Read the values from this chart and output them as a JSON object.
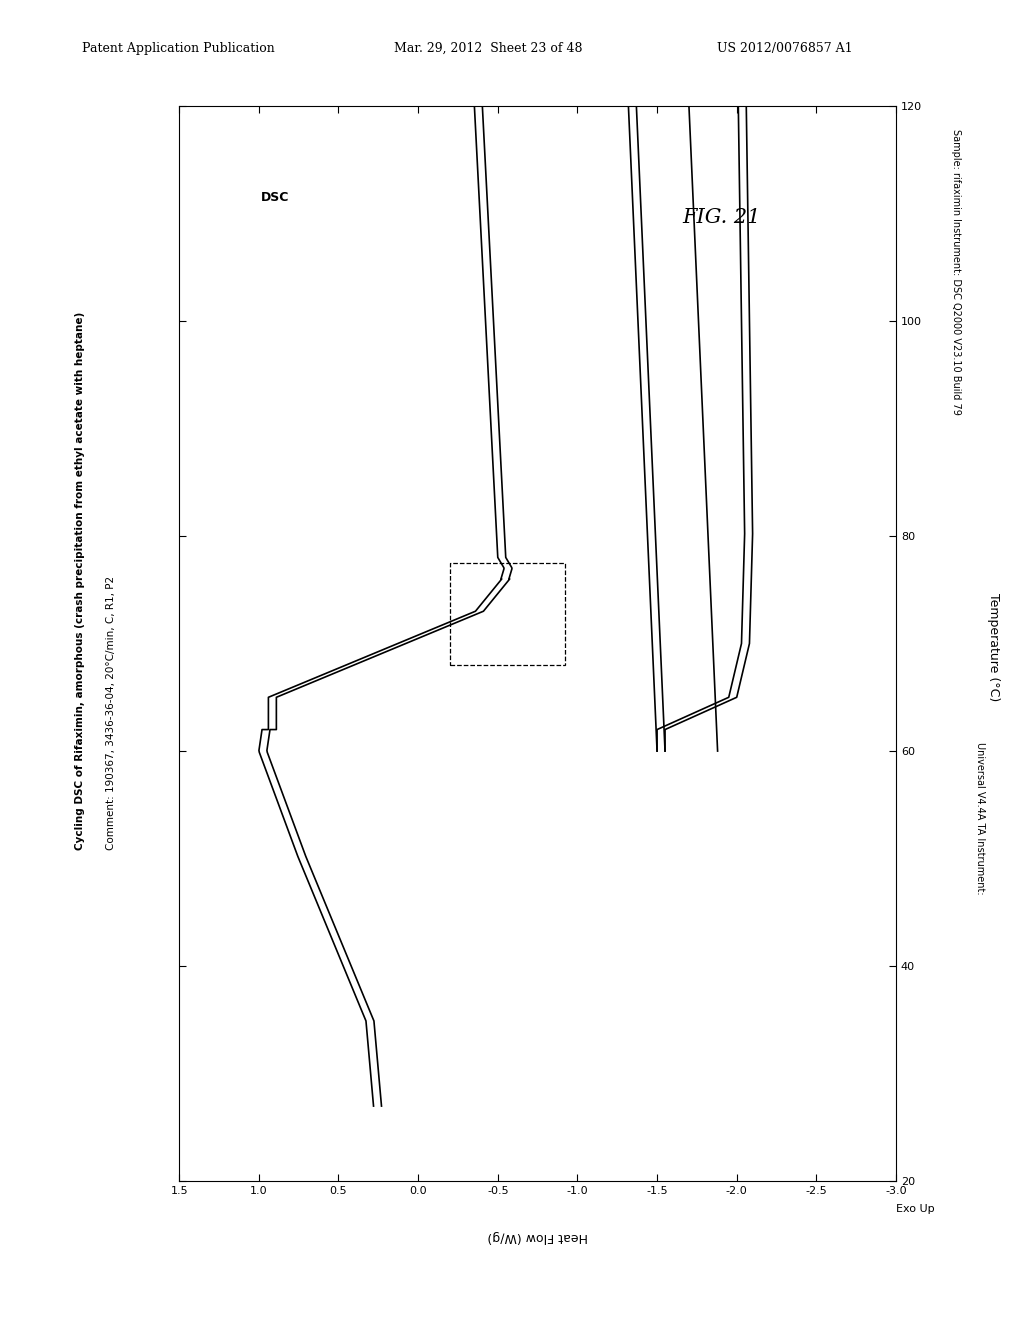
{
  "header_left": "Patent Application Publication",
  "header_center": "Mar. 29, 2012  Sheet 23 of 48",
  "header_right": "US 2012/0076857 A1",
  "fig_label": "FIG. 21",
  "title_bold": "Cycling DSC of Rifaximin, amorphous (crash precipitation from ethyl acetate with heptane)",
  "title_comment": "Comment: 190367, 3436-36-04, 20°C/min, C, R1, P2",
  "title_dsc": "DSC",
  "instrument_line1": "Instrument: DSC Q2000 V23.10 Build 79",
  "instrument_line2": "Sample: rifaximin",
  "xlabel_temp": "Temperature (°C)",
  "ylabel_hf": "Heat Flow (W/g)",
  "exo_label": "Exo Up",
  "instrument_label": "Universal V4.4A TA Instrument:",
  "hf_min": -3.0,
  "hf_max": 1.5,
  "temp_min": 20,
  "temp_max": 120,
  "background_color": "#ffffff",
  "line_color": "#000000"
}
